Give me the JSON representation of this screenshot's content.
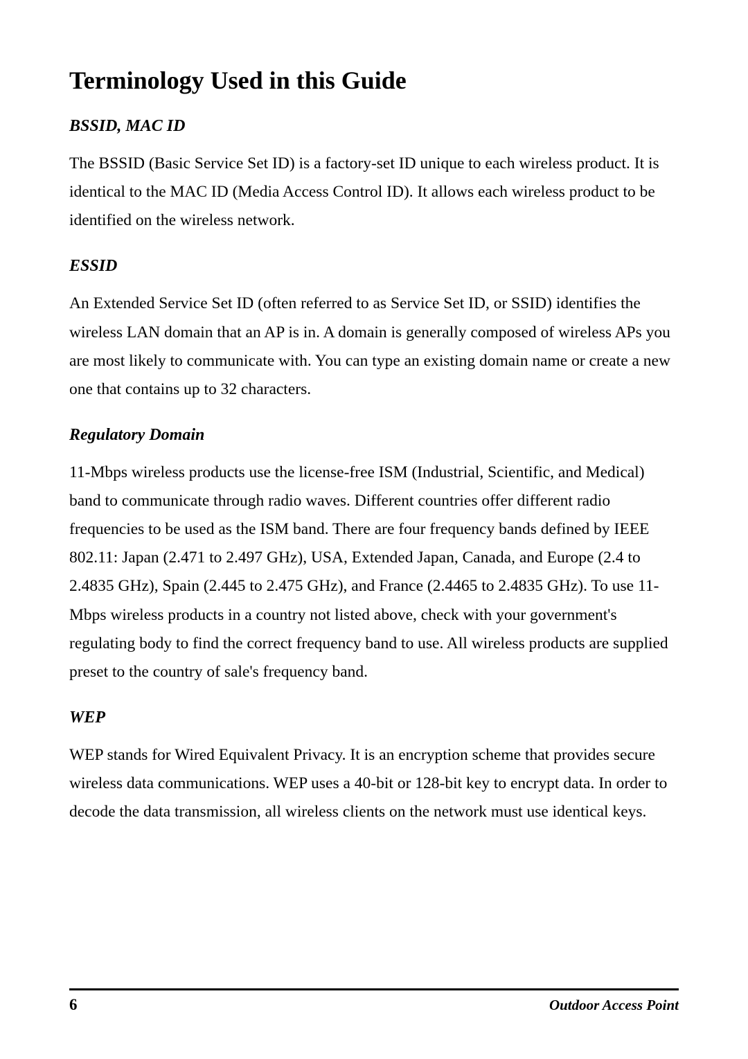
{
  "title": "Terminology Used in this Guide",
  "sections": [
    {
      "heading": "BSSID, MAC ID",
      "body": "The BSSID (Basic Service Set ID) is a factory-set ID unique to each wireless product. It is identical to the MAC ID (Media Access Control ID). It allows each wireless product to be identified on the wireless network."
    },
    {
      "heading": "ESSID",
      "body": "An Extended Service Set ID (often referred to as Service Set ID, or SSID) identifies the wireless LAN domain that an AP is in. A domain is generally composed of wireless APs you are most likely to communicate with. You can type an existing domain name or create a new one that contains up to 32 characters."
    },
    {
      "heading": "Regulatory Domain",
      "body": "11-Mbps wireless products use the license-free ISM (Industrial, Scientific, and Medical) band to communicate through radio waves. Different countries offer different radio frequencies to be used as the ISM band. There are four frequency bands defined by IEEE 802.11: Japan (2.471 to 2.497 GHz), USA, Extended Japan, Canada, and Europe (2.4 to 2.4835 GHz), Spain (2.445 to 2.475 GHz), and France (2.4465 to 2.4835 GHz). To use 11-Mbps wireless products in a country not listed above, check with your government's regulating body to find the correct frequency band to use. All wireless products are supplied preset to the country of sale's frequency band."
    },
    {
      "heading": "WEP",
      "body": "WEP stands for Wired Equivalent Privacy. It is an encryption scheme that provides secure wireless data communications. WEP uses a 40-bit or 128-bit key to encrypt data. In order to decode the data transmission, all wireless clients on the network must use identical keys."
    }
  ],
  "footer": {
    "page_number": "6",
    "doc_title": "Outdoor Access Point"
  }
}
